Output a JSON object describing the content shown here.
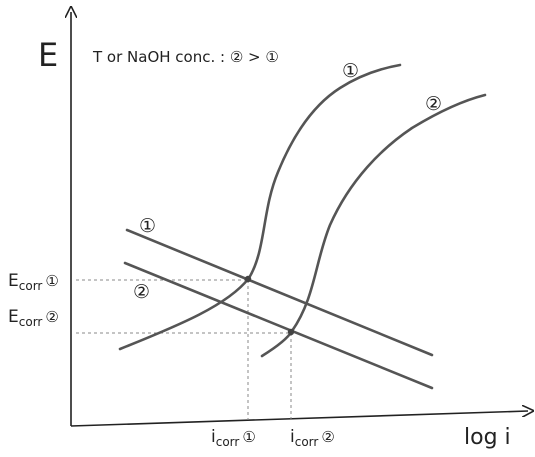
{
  "axes": {
    "y_label": "E",
    "x_label": "log i"
  },
  "legend_note": "T or NaOH conc. : ② > ①",
  "curves": {
    "anodic_1_label": "①",
    "anodic_2_label": "②",
    "cathodic_1_label": "①",
    "cathodic_2_label": "②"
  },
  "ecorr_1": {
    "main": "E",
    "sub": "corr",
    "tag": "①"
  },
  "ecorr_2": {
    "main": "E",
    "sub": "corr",
    "tag": "②"
  },
  "icorr_1": {
    "main": "i",
    "sub": "corr",
    "tag": "①"
  },
  "icorr_2": {
    "main": "i",
    "sub": "corr",
    "tag": "②"
  },
  "colors": {
    "curve": "#555555",
    "axis": "#222222",
    "guide": "#888888"
  }
}
